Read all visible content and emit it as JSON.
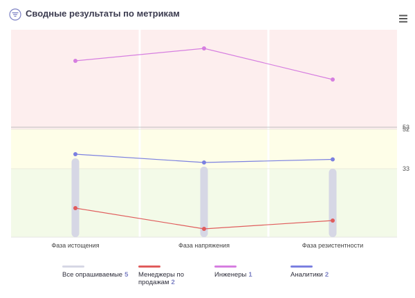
{
  "header": {
    "title": "Сводные результаты по метрикам",
    "filter_icon": "filter-icon",
    "menu_icon": "hamburger-menu-icon"
  },
  "colors": {
    "zone_red": "#fdeeee",
    "zone_yellow": "#fefee8",
    "zone_green": "#f3fae8",
    "all_respondents": "#d6d7e5",
    "sales_managers": "#e05c5c",
    "engineers": "#d67ee0",
    "analysts": "#7b80e0"
  },
  "chart_data": {
    "type": "line",
    "categories": [
      "Фаза истощения",
      "Фаза напряжения",
      "Фаза резистентности"
    ],
    "ylim": [
      0,
      100
    ],
    "zones": [
      {
        "from": 0,
        "to": 33,
        "color": "#f3fae8"
      },
      {
        "from": 33,
        "to": 52,
        "color": "#fefee8"
      },
      {
        "from": 52,
        "to": 100,
        "color": "#fdeeee"
      }
    ],
    "ytick_labels": [
      "53",
      "52",
      "33"
    ],
    "ytick_values": [
      53,
      52,
      33
    ],
    "series": [
      {
        "name": "Все опрашиваемые",
        "type": "bar",
        "values": [
          38,
          34,
          33
        ],
        "color": "#d6d7e5"
      },
      {
        "name": "Менеджеры по продажам",
        "type": "line",
        "values": [
          14,
          4,
          8
        ],
        "color": "#e05c5c"
      },
      {
        "name": "Инженеры",
        "type": "line",
        "values": [
          85,
          91,
          76
        ],
        "color": "#d67ee0"
      },
      {
        "name": "Аналитики",
        "type": "line",
        "values": [
          40,
          36,
          37.5
        ],
        "color": "#7b80e0"
      }
    ]
  },
  "legend": [
    {
      "label": "Все опрашиваемые",
      "count": "5",
      "color": "#d6d7e5"
    },
    {
      "label": "Менеджеры по продажам",
      "count": "2",
      "color": "#e05c5c"
    },
    {
      "label": "Инженеры",
      "count": "1",
      "color": "#d67ee0"
    },
    {
      "label": "Аналитики",
      "count": "2",
      "color": "#7b80e0"
    }
  ]
}
